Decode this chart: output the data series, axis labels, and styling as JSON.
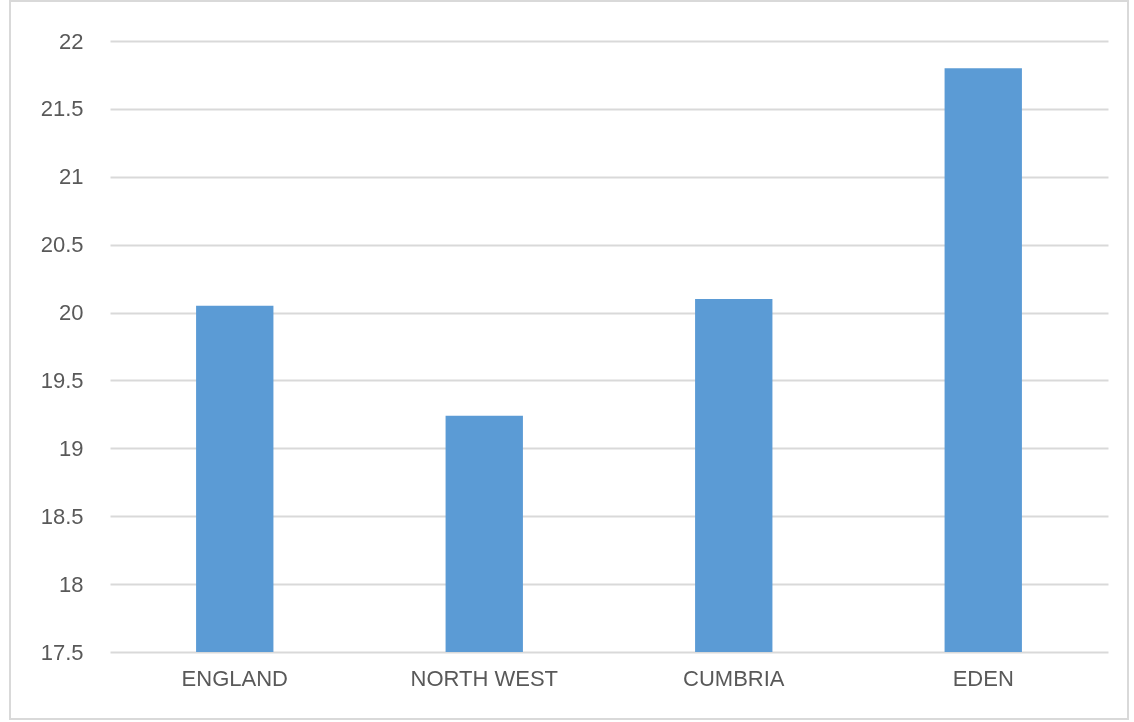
{
  "chart_data": {
    "type": "bar",
    "categories": [
      "ENGLAND",
      "NORTH WEST",
      "CUMBRIA",
      "EDEN"
    ],
    "values": [
      20.05,
      19.24,
      20.1,
      21.8
    ],
    "color": "#5b9bd5",
    "ylim": [
      17.5,
      22
    ],
    "yticks": [
      17.5,
      18,
      18.5,
      19,
      19.5,
      20,
      20.5,
      21,
      21.5,
      22
    ],
    "grid": "y"
  }
}
